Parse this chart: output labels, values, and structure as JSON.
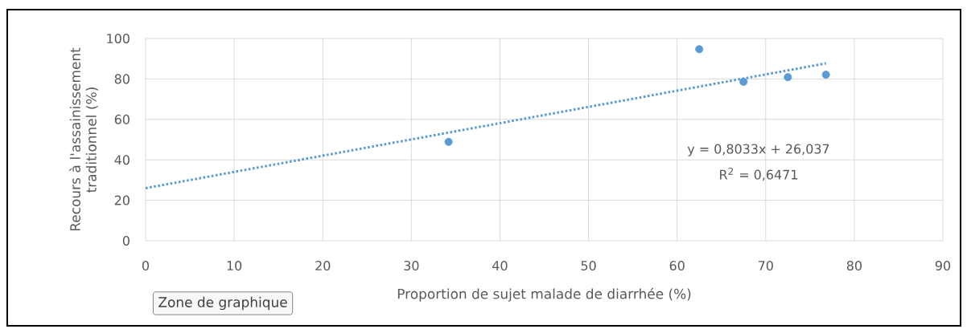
{
  "chart_data": {
    "type": "scatter",
    "xlabel": "Proportion de sujet malade de diarrhée (%)",
    "ylabel": "Recours à l'assainissement traditionnel (%)",
    "xlim": [
      0,
      90
    ],
    "xticks": [
      0,
      10,
      20,
      30,
      40,
      50,
      60,
      70,
      80,
      90
    ],
    "ylim": [
      0,
      100
    ],
    "yticks": [
      0,
      20,
      40,
      60,
      80,
      100
    ],
    "grid": true,
    "series": [
      {
        "color": "#5b9bd5",
        "marker": "circle",
        "x": [
          34.2,
          62.5,
          67.5,
          72.5,
          76.8
        ],
        "values": [
          48.9,
          94.7,
          78.6,
          80.9,
          82.1
        ]
      },
      {
        "type": "line",
        "color": "#5b9bd5",
        "line_style": "dotted",
        "marker": "none",
        "x": [
          0,
          76.8
        ],
        "values": [
          26,
          87.7
        ]
      }
    ],
    "annotations": [
      "y = 0,8033x + 26,037",
      "R$^{2}$ = 0,6471",
      "Zone de graphique"
    ]
  }
}
